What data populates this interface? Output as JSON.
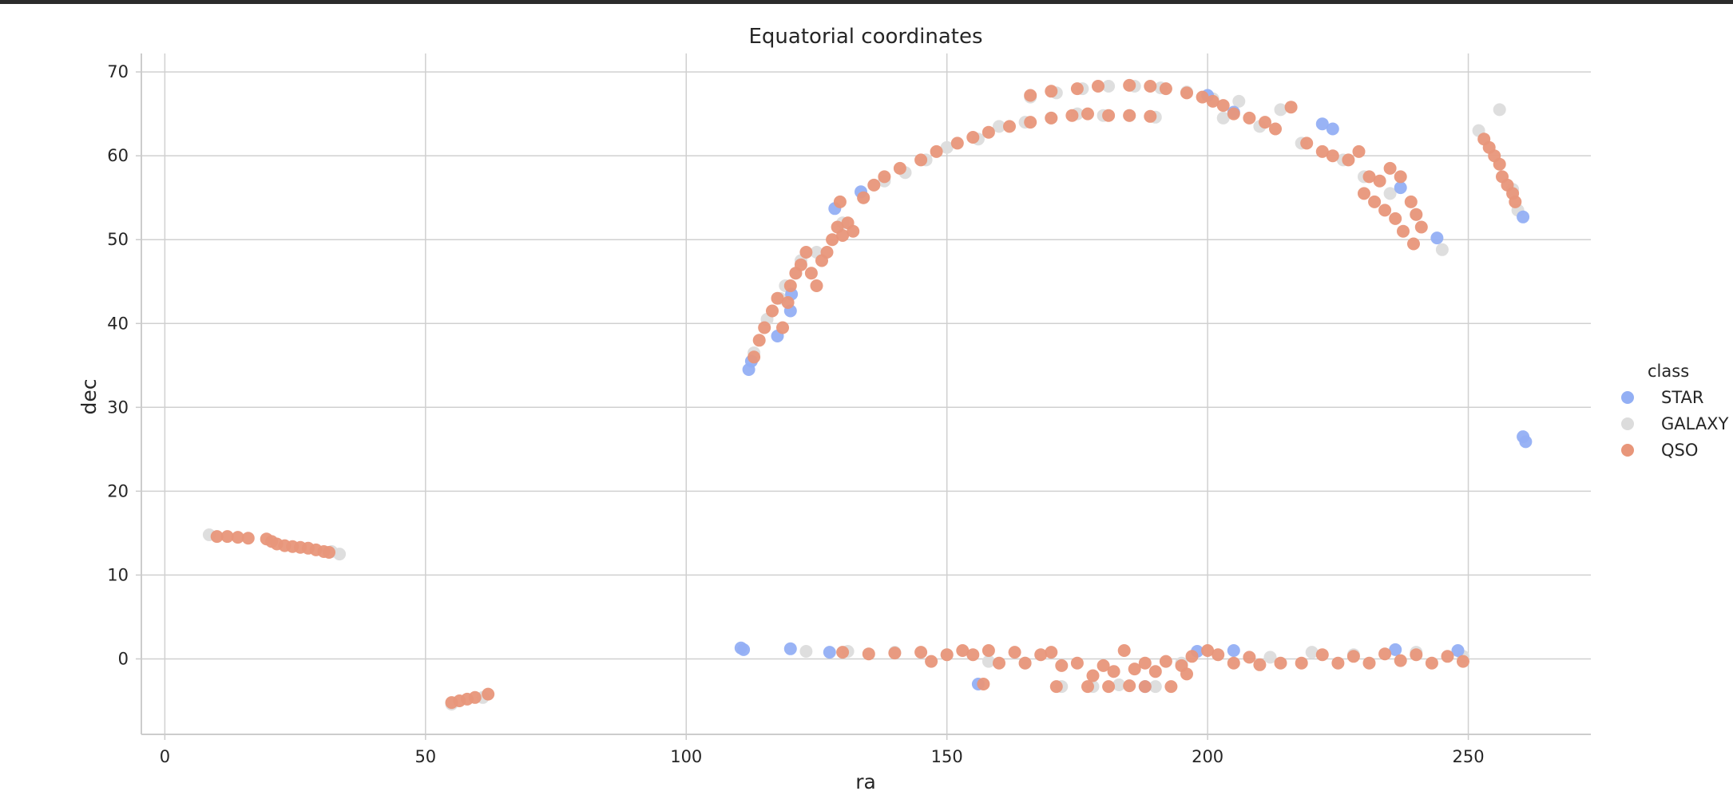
{
  "chart_data": {
    "type": "scatter",
    "title": "Equatorial coordinates",
    "xlabel": "ra",
    "ylabel": "dec",
    "xlim": [
      -4.5,
      273.5
    ],
    "ylim": [
      -9,
      72.2
    ],
    "xticks": [
      0,
      50,
      100,
      150,
      200,
      250
    ],
    "yticks": [
      0,
      10,
      20,
      30,
      40,
      50,
      60,
      70
    ],
    "grid": true,
    "legend": {
      "title": "class",
      "placement": "right"
    },
    "series": [
      {
        "name": "STAR",
        "color": "#93aff4",
        "points": [
          [
            112.0,
            34.5
          ],
          [
            112.5,
            35.5
          ],
          [
            117.5,
            38.5
          ],
          [
            120.0,
            41.5
          ],
          [
            120.2,
            43.5
          ],
          [
            128.5,
            53.7
          ],
          [
            133.5,
            55.7
          ],
          [
            200.0,
            67.2
          ],
          [
            205.0,
            65.2
          ],
          [
            222.0,
            63.8
          ],
          [
            224.0,
            63.2
          ],
          [
            237.0,
            56.2
          ],
          [
            244.0,
            50.2
          ],
          [
            260.5,
            52.7
          ],
          [
            260.5,
            26.5
          ],
          [
            261.0,
            25.9
          ],
          [
            110.5,
            1.3
          ],
          [
            111.0,
            1.1
          ],
          [
            120.0,
            1.2
          ],
          [
            127.5,
            0.8
          ],
          [
            156.0,
            -3.0
          ],
          [
            188.0,
            -3.3
          ],
          [
            198.0,
            0.9
          ],
          [
            205.0,
            1.0
          ],
          [
            236.0,
            1.1
          ],
          [
            248.0,
            1.0
          ]
        ]
      },
      {
        "name": "GALAXY",
        "color": "#dcdcdc",
        "points": [
          [
            8.5,
            14.8
          ],
          [
            33.5,
            12.5
          ],
          [
            32.0,
            12.8
          ],
          [
            113.0,
            36.5
          ],
          [
            115.5,
            40.5
          ],
          [
            118.0,
            43.0
          ],
          [
            119.0,
            44.5
          ],
          [
            121.0,
            46.0
          ],
          [
            122.0,
            47.5
          ],
          [
            125.0,
            48.5
          ],
          [
            130.0,
            52.0
          ],
          [
            134.0,
            55.0
          ],
          [
            138.0,
            57.0
          ],
          [
            142.0,
            58.0
          ],
          [
            146.0,
            59.5
          ],
          [
            150.0,
            61.0
          ],
          [
            156.0,
            62.0
          ],
          [
            160.0,
            63.5
          ],
          [
            165.0,
            64.0
          ],
          [
            170.0,
            64.5
          ],
          [
            175.0,
            65.0
          ],
          [
            180.0,
            64.8
          ],
          [
            185.0,
            64.8
          ],
          [
            190.0,
            64.6
          ],
          [
            166.0,
            67.0
          ],
          [
            171.0,
            67.5
          ],
          [
            176.0,
            68.0
          ],
          [
            181.0,
            68.3
          ],
          [
            186.0,
            68.3
          ],
          [
            191.0,
            68.1
          ],
          [
            196.0,
            67.6
          ],
          [
            201.0,
            66.8
          ],
          [
            203.0,
            64.5
          ],
          [
            206.0,
            66.5
          ],
          [
            210.0,
            63.5
          ],
          [
            214.0,
            65.5
          ],
          [
            218.0,
            61.5
          ],
          [
            226.0,
            59.5
          ],
          [
            230.0,
            57.5
          ],
          [
            235.0,
            55.5
          ],
          [
            240.0,
            53.0
          ],
          [
            245.0,
            48.8
          ],
          [
            252.0,
            63.0
          ],
          [
            256.0,
            65.5
          ],
          [
            258.5,
            56.0
          ],
          [
            259.5,
            53.5
          ],
          [
            123.0,
            0.9
          ],
          [
            131.0,
            0.9
          ],
          [
            140.0,
            0.8
          ],
          [
            150.0,
            0.5
          ],
          [
            158.0,
            -0.3
          ],
          [
            165.0,
            -0.5
          ],
          [
            172.0,
            -3.3
          ],
          [
            178.0,
            -3.3
          ],
          [
            183.0,
            -3.1
          ],
          [
            190.0,
            -3.3
          ],
          [
            195.0,
            -0.5
          ],
          [
            212.0,
            0.2
          ],
          [
            220.0,
            0.8
          ],
          [
            228.0,
            0.5
          ],
          [
            240.0,
            0.8
          ],
          [
            249.0,
            0.3
          ],
          [
            55.0,
            -5.4
          ],
          [
            61.0,
            -4.6
          ]
        ]
      },
      {
        "name": "QSO",
        "color": "#e8967a",
        "points": [
          [
            10.0,
            14.6
          ],
          [
            12.0,
            14.6
          ],
          [
            14.0,
            14.5
          ],
          [
            16.0,
            14.4
          ],
          [
            19.5,
            14.3
          ],
          [
            20.5,
            14.0
          ],
          [
            21.5,
            13.7
          ],
          [
            23.0,
            13.5
          ],
          [
            24.5,
            13.4
          ],
          [
            26.0,
            13.3
          ],
          [
            27.5,
            13.2
          ],
          [
            29.0,
            13.0
          ],
          [
            30.5,
            12.8
          ],
          [
            31.5,
            12.7
          ],
          [
            55.0,
            -5.2
          ],
          [
            56.5,
            -5.0
          ],
          [
            58.0,
            -4.8
          ],
          [
            59.5,
            -4.6
          ],
          [
            62.0,
            -4.2
          ],
          [
            113.0,
            36.0
          ],
          [
            114.0,
            38.0
          ],
          [
            115.0,
            39.5
          ],
          [
            116.5,
            41.5
          ],
          [
            117.5,
            43.0
          ],
          [
            118.5,
            39.5
          ],
          [
            119.5,
            42.5
          ],
          [
            120.0,
            44.5
          ],
          [
            121.0,
            46.0
          ],
          [
            122.0,
            47.0
          ],
          [
            123.0,
            48.5
          ],
          [
            124.0,
            46.0
          ],
          [
            125.0,
            44.5
          ],
          [
            126.0,
            47.5
          ],
          [
            127.0,
            48.5
          ],
          [
            128.0,
            50.0
          ],
          [
            129.0,
            51.5
          ],
          [
            130.0,
            50.5
          ],
          [
            131.0,
            52.0
          ],
          [
            132.0,
            51.0
          ],
          [
            129.5,
            54.5
          ],
          [
            134.0,
            55.0
          ],
          [
            136.0,
            56.5
          ],
          [
            138.0,
            57.5
          ],
          [
            141.0,
            58.5
          ],
          [
            145.0,
            59.5
          ],
          [
            148.0,
            60.5
          ],
          [
            152.0,
            61.5
          ],
          [
            155.0,
            62.2
          ],
          [
            158.0,
            62.8
          ],
          [
            162.0,
            63.5
          ],
          [
            166.0,
            64.0
          ],
          [
            170.0,
            64.5
          ],
          [
            174.0,
            64.8
          ],
          [
            177.0,
            65.0
          ],
          [
            181.0,
            64.8
          ],
          [
            185.0,
            64.8
          ],
          [
            189.0,
            64.7
          ],
          [
            166.0,
            67.2
          ],
          [
            170.0,
            67.7
          ],
          [
            175.0,
            68.0
          ],
          [
            179.0,
            68.3
          ],
          [
            185.0,
            68.4
          ],
          [
            189.0,
            68.3
          ],
          [
            192.0,
            68.0
          ],
          [
            196.0,
            67.5
          ],
          [
            199.0,
            67.0
          ],
          [
            201.0,
            66.5
          ],
          [
            203.0,
            66.0
          ],
          [
            205.0,
            65.0
          ],
          [
            208.0,
            64.5
          ],
          [
            211.0,
            64.0
          ],
          [
            213.0,
            63.2
          ],
          [
            216.0,
            65.8
          ],
          [
            219.0,
            61.5
          ],
          [
            222.0,
            60.5
          ],
          [
            224.0,
            60.0
          ],
          [
            227.0,
            59.5
          ],
          [
            229.0,
            60.5
          ],
          [
            231.0,
            57.5
          ],
          [
            233.0,
            57.0
          ],
          [
            235.0,
            58.5
          ],
          [
            237.0,
            57.5
          ],
          [
            239.0,
            54.5
          ],
          [
            240.0,
            53.0
          ],
          [
            241.0,
            51.5
          ],
          [
            230.0,
            55.5
          ],
          [
            232.0,
            54.5
          ],
          [
            234.0,
            53.5
          ],
          [
            236.0,
            52.5
          ],
          [
            237.5,
            51.0
          ],
          [
            239.5,
            49.5
          ],
          [
            253.0,
            62.0
          ],
          [
            254.0,
            61.0
          ],
          [
            255.0,
            60.0
          ],
          [
            256.0,
            59.0
          ],
          [
            256.5,
            57.5
          ],
          [
            257.5,
            56.5
          ],
          [
            258.5,
            55.5
          ],
          [
            259.0,
            54.5
          ],
          [
            130.0,
            0.8
          ],
          [
            135.0,
            0.6
          ],
          [
            140.0,
            0.7
          ],
          [
            145.0,
            0.8
          ],
          [
            147.0,
            -0.3
          ],
          [
            150.0,
            0.5
          ],
          [
            153.0,
            1.0
          ],
          [
            155.0,
            0.5
          ],
          [
            158.0,
            1.0
          ],
          [
            160.0,
            -0.5
          ],
          [
            163.0,
            0.8
          ],
          [
            165.0,
            -0.5
          ],
          [
            168.0,
            0.5
          ],
          [
            170.0,
            0.8
          ],
          [
            172.0,
            -0.8
          ],
          [
            175.0,
            -0.5
          ],
          [
            178.0,
            -2.0
          ],
          [
            180.0,
            -0.8
          ],
          [
            182.0,
            -1.5
          ],
          [
            184.0,
            1.0
          ],
          [
            186.0,
            -1.2
          ],
          [
            188.0,
            -0.5
          ],
          [
            190.0,
            -1.5
          ],
          [
            192.0,
            -0.3
          ],
          [
            195.0,
            -0.8
          ],
          [
            197.0,
            0.3
          ],
          [
            200.0,
            1.0
          ],
          [
            202.0,
            0.5
          ],
          [
            205.0,
            -0.5
          ],
          [
            208.0,
            0.2
          ],
          [
            210.0,
            -0.7
          ],
          [
            214.0,
            -0.5
          ],
          [
            218.0,
            -0.5
          ],
          [
            222.0,
            0.5
          ],
          [
            225.0,
            -0.5
          ],
          [
            228.0,
            0.3
          ],
          [
            231.0,
            -0.5
          ],
          [
            234.0,
            0.6
          ],
          [
            237.0,
            -0.2
          ],
          [
            240.0,
            0.5
          ],
          [
            243.0,
            -0.5
          ],
          [
            246.0,
            0.3
          ],
          [
            249.0,
            -0.3
          ],
          [
            157.0,
            -3.0
          ],
          [
            171.0,
            -3.3
          ],
          [
            177.0,
            -3.3
          ],
          [
            181.0,
            -3.3
          ],
          [
            185.0,
            -3.2
          ],
          [
            188.0,
            -3.3
          ],
          [
            193.0,
            -3.3
          ],
          [
            196.0,
            -1.8
          ]
        ]
      }
    ]
  }
}
